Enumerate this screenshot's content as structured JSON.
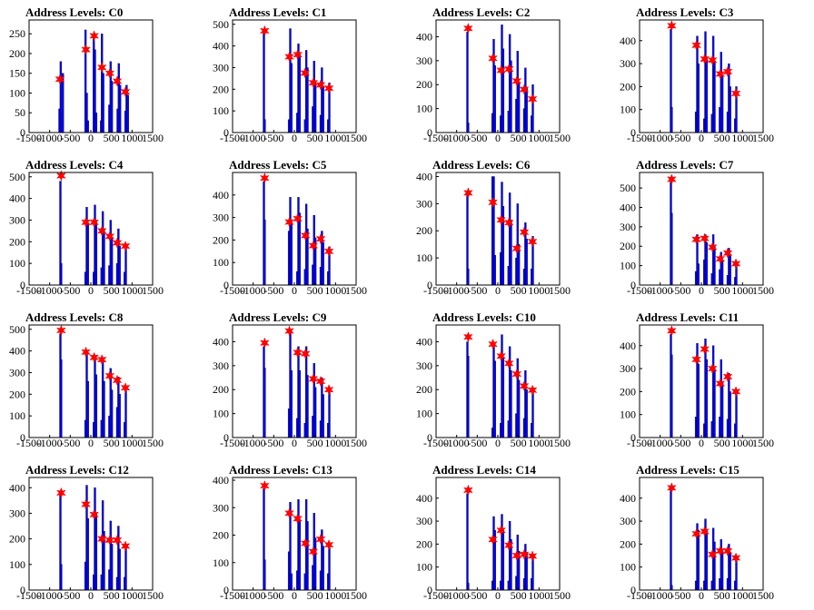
{
  "chart_data": [
    {
      "type": "bar",
      "title": "Address Levels: C0",
      "xlim": [
        -1500,
        1500
      ],
      "xticks": [
        -1500,
        -1000,
        -500,
        0,
        500,
        1000,
        1500
      ],
      "ylim": [
        0,
        285
      ],
      "yticks": [
        0,
        50,
        100,
        150,
        200,
        250
      ],
      "x": [
        -760,
        -730,
        -680,
        -130,
        -100,
        -70,
        70,
        100,
        130,
        250,
        270,
        300,
        450,
        480,
        510,
        650,
        680,
        710,
        840,
        870,
        900
      ],
      "values": [
        60,
        180,
        150,
        260,
        100,
        30,
        240,
        210,
        50,
        30,
        250,
        150,
        70,
        180,
        130,
        60,
        175,
        120,
        55,
        120,
        95
      ],
      "markers": {
        "x": [
          -750,
          -120,
          80,
          270,
          460,
          640,
          840
        ],
        "y": [
          135,
          210,
          245,
          165,
          150,
          130,
          103
        ]
      }
    },
    {
      "type": "bar",
      "title": "Address Levels: C1",
      "xlim": [
        -1500,
        1500
      ],
      "xticks": [
        -1500,
        -1000,
        -500,
        0,
        500,
        1000,
        1500
      ],
      "ylim": [
        0,
        520
      ],
      "yticks": [
        0,
        100,
        200,
        300,
        400,
        500
      ],
      "x": [
        -740,
        -720,
        -130,
        -100,
        -70,
        70,
        100,
        130,
        260,
        290,
        320,
        450,
        480,
        510,
        640,
        670,
        700,
        820,
        850
      ],
      "values": [
        470,
        60,
        60,
        480,
        320,
        90,
        410,
        360,
        60,
        380,
        300,
        120,
        330,
        230,
        80,
        300,
        210,
        60,
        230
      ],
      "markers": {
        "x": [
          -720,
          -120,
          80,
          260,
          460,
          640,
          840
        ],
        "y": [
          470,
          350,
          360,
          275,
          230,
          220,
          205
        ]
      }
    },
    {
      "type": "bar",
      "title": "Address Levels: C2",
      "xlim": [
        -1500,
        1500
      ],
      "xticks": [
        -1500,
        -1000,
        -500,
        0,
        500,
        1000,
        1500
      ],
      "ylim": [
        0,
        470
      ],
      "yticks": [
        0,
        100,
        200,
        300,
        400
      ],
      "x": [
        -740,
        -720,
        -130,
        -100,
        -70,
        70,
        100,
        130,
        260,
        290,
        320,
        450,
        480,
        510,
        640,
        670,
        700,
        820,
        850
      ],
      "values": [
        420,
        40,
        80,
        390,
        280,
        70,
        450,
        350,
        90,
        410,
        300,
        140,
        340,
        210,
        100,
        270,
        190,
        70,
        200
      ],
      "markers": {
        "x": [
          -720,
          -120,
          80,
          270,
          460,
          640,
          840
        ],
        "y": [
          435,
          310,
          260,
          265,
          215,
          180,
          140
        ]
      }
    },
    {
      "type": "bar",
      "title": "Address Levels: C3",
      "xlim": [
        -1500,
        1500
      ],
      "xticks": [
        -1500,
        -1000,
        -500,
        0,
        500,
        1000,
        1500
      ],
      "ylim": [
        0,
        490
      ],
      "yticks": [
        0,
        100,
        200,
        300,
        400
      ],
      "x": [
        -740,
        -720,
        -130,
        -100,
        -70,
        70,
        100,
        130,
        260,
        290,
        320,
        450,
        480,
        510,
        640,
        670,
        700,
        820,
        850
      ],
      "values": [
        450,
        110,
        90,
        420,
        300,
        60,
        440,
        330,
        80,
        420,
        310,
        110,
        350,
        250,
        90,
        300,
        200,
        60,
        200
      ],
      "markers": {
        "x": [
          -720,
          -120,
          80,
          270,
          460,
          640,
          840
        ],
        "y": [
          465,
          380,
          320,
          315,
          255,
          265,
          170
        ]
      }
    },
    {
      "type": "bar",
      "title": "Address Levels: C4",
      "xlim": [
        -1500,
        1500
      ],
      "xticks": [
        -1500,
        -1000,
        -500,
        0,
        500,
        1000,
        1500
      ],
      "ylim": [
        0,
        520
      ],
      "yticks": [
        0,
        100,
        200,
        300,
        400,
        500
      ],
      "x": [
        -740,
        -720,
        -130,
        -100,
        -70,
        70,
        100,
        130,
        260,
        290,
        320,
        450,
        480,
        510,
        640,
        670,
        700,
        820,
        850
      ],
      "values": [
        480,
        100,
        60,
        360,
        280,
        60,
        370,
        290,
        80,
        340,
        250,
        90,
        300,
        220,
        100,
        260,
        180,
        60,
        190
      ],
      "markers": {
        "x": [
          -720,
          -120,
          80,
          270,
          460,
          640,
          840
        ],
        "y": [
          505,
          290,
          290,
          250,
          225,
          195,
          180
        ]
      }
    },
    {
      "type": "bar",
      "title": "Address Levels: C5",
      "xlim": [
        -1500,
        1500
      ],
      "xticks": [
        -1500,
        -1000,
        -500,
        0,
        500,
        1000,
        1500
      ],
      "ylim": [
        0,
        500
      ],
      "yticks": [
        0,
        100,
        200,
        300,
        400
      ],
      "x": [
        -740,
        -720,
        -130,
        -100,
        -70,
        70,
        100,
        130,
        260,
        290,
        320,
        450,
        480,
        510,
        640,
        670,
        700,
        820,
        850
      ],
      "values": [
        460,
        290,
        240,
        390,
        280,
        60,
        390,
        320,
        70,
        360,
        250,
        90,
        310,
        210,
        80,
        240,
        190,
        60,
        170
      ],
      "markers": {
        "x": [
          -720,
          -120,
          80,
          270,
          460,
          640,
          840
        ],
        "y": [
          475,
          280,
          295,
          220,
          175,
          205,
          150
        ]
      }
    },
    {
      "type": "bar",
      "title": "Address Levels: C6",
      "xlim": [
        -1500,
        1500
      ],
      "xticks": [
        -1500,
        -1000,
        -500,
        0,
        500,
        1000,
        1500
      ],
      "ylim": [
        0,
        415
      ],
      "yticks": [
        0,
        100,
        200,
        300,
        400
      ],
      "x": [
        -740,
        -720,
        -130,
        -100,
        -70,
        70,
        100,
        130,
        260,
        290,
        320,
        450,
        480,
        510,
        640,
        670,
        700,
        820,
        850
      ],
      "values": [
        340,
        60,
        400,
        400,
        110,
        120,
        380,
        290,
        70,
        340,
        240,
        100,
        300,
        150,
        60,
        230,
        170,
        60,
        180
      ],
      "markers": {
        "x": [
          -720,
          -120,
          80,
          270,
          460,
          640,
          840
        ],
        "y": [
          340,
          305,
          240,
          230,
          135,
          195,
          160
        ]
      }
    },
    {
      "type": "bar",
      "title": "Address Levels: C7",
      "xlim": [
        -1500,
        1500
      ],
      "xticks": [
        -1500,
        -1000,
        -500,
        0,
        500,
        1000,
        1500
      ],
      "ylim": [
        0,
        580
      ],
      "yticks": [
        0,
        100,
        200,
        300,
        400,
        500
      ],
      "x": [
        -740,
        -720,
        -130,
        -100,
        -70,
        70,
        100,
        130,
        260,
        290,
        320,
        450,
        480,
        510,
        640,
        670,
        700,
        820,
        850
      ],
      "values": [
        540,
        370,
        70,
        260,
        110,
        130,
        260,
        220,
        60,
        260,
        200,
        80,
        170,
        130,
        50,
        190,
        150,
        40,
        120
      ],
      "markers": {
        "x": [
          -720,
          -120,
          80,
          270,
          460,
          640,
          840
        ],
        "y": [
          545,
          235,
          240,
          195,
          135,
          165,
          110
        ]
      }
    },
    {
      "type": "bar",
      "title": "Address Levels: C8",
      "xlim": [
        -1500,
        1500
      ],
      "xticks": [
        -1500,
        -1000,
        -500,
        0,
        500,
        1000,
        1500
      ],
      "ylim": [
        0,
        520
      ],
      "yticks": [
        0,
        100,
        200,
        300,
        400,
        500
      ],
      "x": [
        -740,
        -720,
        -130,
        -100,
        -70,
        70,
        100,
        130,
        260,
        290,
        320,
        450,
        480,
        510,
        640,
        670,
        700,
        820,
        850
      ],
      "values": [
        480,
        360,
        80,
        400,
        260,
        70,
        380,
        290,
        80,
        370,
        260,
        100,
        320,
        220,
        140,
        280,
        200,
        70,
        220
      ],
      "markers": {
        "x": [
          -720,
          -120,
          80,
          270,
          460,
          640,
          840
        ],
        "y": [
          495,
          395,
          370,
          360,
          285,
          265,
          230
        ]
      }
    },
    {
      "type": "bar",
      "title": "Address Levels: C9",
      "xlim": [
        -1500,
        1500
      ],
      "xticks": [
        -1500,
        -1000,
        -500,
        0,
        500,
        1000,
        1500
      ],
      "ylim": [
        0,
        470
      ],
      "yticks": [
        0,
        100,
        200,
        300,
        400
      ],
      "x": [
        -740,
        -720,
        -130,
        -100,
        -70,
        70,
        100,
        130,
        260,
        290,
        320,
        450,
        480,
        510,
        640,
        670,
        700,
        820,
        850
      ],
      "values": [
        380,
        290,
        120,
        440,
        280,
        80,
        380,
        280,
        60,
        380,
        260,
        90,
        310,
        210,
        70,
        250,
        180,
        60,
        200
      ],
      "markers": {
        "x": [
          -720,
          -120,
          80,
          270,
          460,
          640,
          840
        ],
        "y": [
          395,
          445,
          355,
          350,
          245,
          235,
          200
        ]
      }
    },
    {
      "type": "bar",
      "title": "Address Levels: C10",
      "xlim": [
        -1500,
        1500
      ],
      "xticks": [
        -1500,
        -1000,
        -500,
        0,
        500,
        1000,
        1500
      ],
      "ylim": [
        0,
        470
      ],
      "yticks": [
        0,
        100,
        200,
        300,
        400
      ],
      "x": [
        -740,
        -720,
        -130,
        -100,
        -70,
        70,
        100,
        130,
        260,
        290,
        320,
        450,
        480,
        510,
        640,
        670,
        700,
        820,
        850
      ],
      "values": [
        400,
        340,
        40,
        390,
        320,
        60,
        430,
        330,
        70,
        380,
        280,
        100,
        330,
        240,
        80,
        280,
        200,
        60,
        210
      ],
      "markers": {
        "x": [
          -720,
          -120,
          80,
          270,
          460,
          640,
          840
        ],
        "y": [
          420,
          390,
          340,
          310,
          265,
          215,
          198
        ]
      }
    },
    {
      "type": "bar",
      "title": "Address Levels: C11",
      "xlim": [
        -1500,
        1500
      ],
      "xticks": [
        -1500,
        -1000,
        -500,
        0,
        500,
        1000,
        1500
      ],
      "ylim": [
        0,
        490
      ],
      "yticks": [
        0,
        100,
        200,
        300,
        400
      ],
      "x": [
        -740,
        -720,
        -130,
        -100,
        -70,
        70,
        100,
        130,
        260,
        290,
        320,
        450,
        480,
        510,
        640,
        670,
        700,
        820,
        850
      ],
      "values": [
        450,
        360,
        90,
        410,
        320,
        60,
        430,
        340,
        70,
        400,
        300,
        90,
        340,
        240,
        80,
        280,
        200,
        60,
        200
      ],
      "markers": {
        "x": [
          -720,
          -120,
          80,
          270,
          460,
          640,
          840
        ],
        "y": [
          465,
          340,
          385,
          300,
          235,
          265,
          200
        ]
      }
    },
    {
      "type": "bar",
      "title": "Address Levels: C12",
      "xlim": [
        -1500,
        1500
      ],
      "xticks": [
        -1500,
        -1000,
        -500,
        0,
        500,
        1000,
        1500
      ],
      "ylim": [
        0,
        440
      ],
      "yticks": [
        0,
        100,
        200,
        300,
        400
      ],
      "x": [
        -740,
        -720,
        -130,
        -100,
        -70,
        70,
        100,
        130,
        260,
        290,
        320,
        450,
        480,
        510,
        640,
        670,
        700,
        820,
        850
      ],
      "values": [
        380,
        100,
        110,
        410,
        280,
        60,
        400,
        300,
        60,
        350,
        230,
        80,
        270,
        180,
        50,
        250,
        160,
        50,
        180
      ],
      "markers": {
        "x": [
          -720,
          -120,
          80,
          270,
          460,
          640,
          840
        ],
        "y": [
          380,
          335,
          295,
          200,
          195,
          195,
          172
        ]
      }
    },
    {
      "type": "bar",
      "title": "Address Levels: C13",
      "xlim": [
        -1500,
        1500
      ],
      "xticks": [
        -1500,
        -1000,
        -500,
        0,
        500,
        1000,
        1500
      ],
      "ylim": [
        0,
        410
      ],
      "yticks": [
        0,
        100,
        200,
        300,
        400
      ],
      "x": [
        -740,
        -720,
        -130,
        -100,
        -70,
        70,
        100,
        130,
        260,
        290,
        320,
        450,
        480,
        510,
        640,
        670,
        700,
        820,
        850
      ],
      "values": [
        370,
        110,
        140,
        320,
        60,
        70,
        330,
        250,
        60,
        330,
        250,
        90,
        280,
        190,
        70,
        220,
        160,
        60,
        170
      ],
      "markers": {
        "x": [
          -720,
          -120,
          80,
          270,
          460,
          640,
          840
        ],
        "y": [
          380,
          280,
          260,
          170,
          140,
          185,
          165
        ]
      }
    },
    {
      "type": "bar",
      "title": "Address Levels: C14",
      "xlim": [
        -1500,
        1500
      ],
      "xticks": [
        -1500,
        -1000,
        -500,
        0,
        500,
        1000,
        1500
      ],
      "ylim": [
        0,
        490
      ],
      "yticks": [
        0,
        100,
        200,
        300,
        400
      ],
      "x": [
        -740,
        -720,
        -130,
        -100,
        -70,
        70,
        100,
        130,
        260,
        290,
        320,
        450,
        480,
        510,
        640,
        670,
        700,
        820,
        850
      ],
      "values": [
        420,
        30,
        40,
        320,
        260,
        40,
        330,
        260,
        40,
        300,
        220,
        60,
        240,
        170,
        50,
        200,
        160,
        50,
        150
      ],
      "markers": {
        "x": [
          -720,
          -120,
          80,
          270,
          460,
          640,
          840
        ],
        "y": [
          435,
          220,
          260,
          195,
          150,
          155,
          148
        ]
      }
    },
    {
      "type": "bar",
      "title": "Address Levels: C15",
      "xlim": [
        -1500,
        1500
      ],
      "xticks": [
        -1500,
        -1000,
        -500,
        0,
        500,
        1000,
        1500
      ],
      "ylim": [
        0,
        490
      ],
      "yticks": [
        0,
        100,
        200,
        300,
        400
      ],
      "x": [
        -740,
        -720,
        -130,
        -100,
        -70,
        70,
        100,
        130,
        260,
        290,
        320,
        450,
        480,
        510,
        640,
        670,
        700,
        820,
        850
      ],
      "values": [
        440,
        20,
        40,
        290,
        260,
        40,
        310,
        260,
        40,
        270,
        210,
        50,
        220,
        170,
        50,
        200,
        160,
        40,
        150
      ],
      "markers": {
        "x": [
          -720,
          -120,
          80,
          270,
          460,
          640,
          840
        ],
        "y": [
          445,
          245,
          255,
          155,
          170,
          170,
          140
        ]
      }
    }
  ],
  "colors": {
    "bars": "#0000ff",
    "bar_outline": "#000000",
    "markers": "#ff0000",
    "axes": "#000000"
  }
}
